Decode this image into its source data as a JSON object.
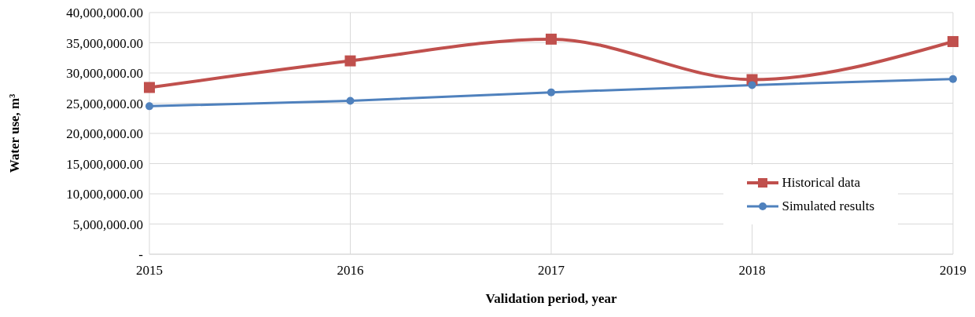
{
  "chart_data": {
    "type": "line",
    "xlabel": "Validation period, year",
    "ylabel": "Water use, m³",
    "categories": [
      "2015",
      "2016",
      "2017",
      "2018",
      "2019"
    ],
    "series": [
      {
        "name": "Historical data",
        "color": "#c0504d",
        "marker": "square",
        "values": [
          27600000,
          32000000,
          35600000,
          28900000,
          35200000
        ]
      },
      {
        "name": "Simulated results",
        "color": "#4f81bd",
        "marker": "circle",
        "values": [
          24500000,
          25400000,
          26800000,
          28000000,
          29000000
        ]
      }
    ],
    "ylim": [
      0,
      40000000
    ],
    "yticks": [
      {
        "value": 0,
        "label": "-"
      },
      {
        "value": 5000000,
        "label": "5,000,000.00"
      },
      {
        "value": 10000000,
        "label": "10,000,000.00"
      },
      {
        "value": 15000000,
        "label": "15,000,000.00"
      },
      {
        "value": 20000000,
        "label": "20,000,000.00"
      },
      {
        "value": 25000000,
        "label": "25,000,000.00"
      },
      {
        "value": 30000000,
        "label": "30,000,000.00"
      },
      {
        "value": 35000000,
        "label": "35,000,000.00"
      },
      {
        "value": 40000000,
        "label": "40,000,000.00"
      }
    ],
    "grid": true,
    "legend": "bottom right"
  }
}
